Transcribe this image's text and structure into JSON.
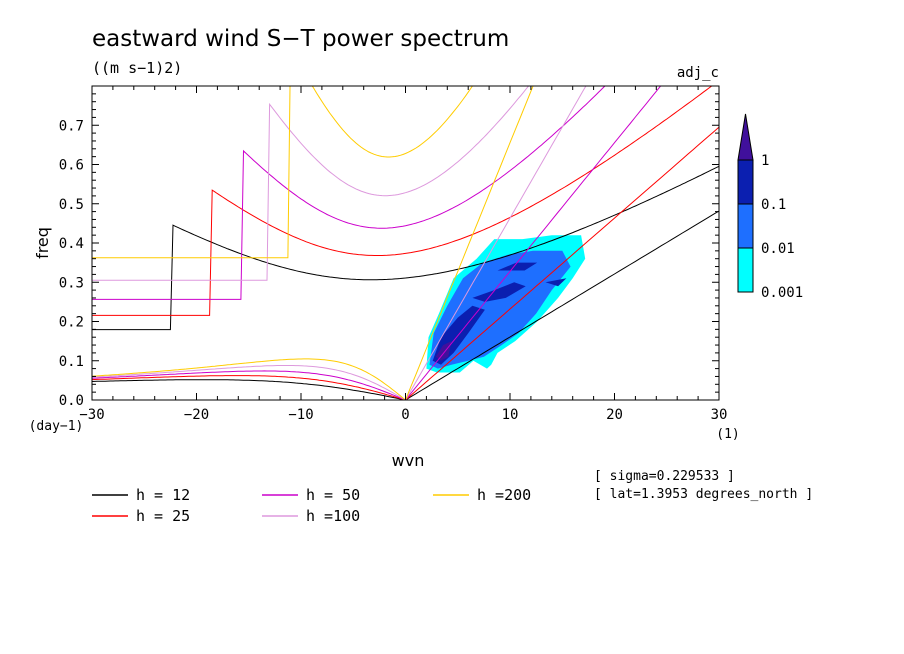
{
  "chart_data": {
    "type": "contour",
    "title": "eastward wind S−T power spectrum",
    "subtitle": "((m s−1)2)",
    "dataset_label": "adj_c",
    "xlabel": "wvn",
    "xunits": "(1)",
    "ylabel": "freq",
    "yunits": "(day−1)",
    "xlim": [
      -30,
      30
    ],
    "ylim": [
      0,
      0.8
    ],
    "xticks": [
      -30,
      -20,
      -10,
      0,
      10,
      20,
      30
    ],
    "xtick_labels": [
      "−30",
      "−20",
      "−10",
      "0",
      "10",
      "20",
      "30"
    ],
    "yticks": [
      0,
      0.1,
      0.2,
      0.3,
      0.4,
      0.5,
      0.6,
      0.7
    ],
    "ytick_labels": [
      "0.0",
      "0.1",
      "0.2",
      "0.3",
      "0.4",
      "0.5",
      "0.6",
      "0.7"
    ],
    "colorbar": {
      "levels": [
        "0.001",
        "0.01",
        "0.1",
        "1"
      ],
      "colors": [
        "#00ffff",
        "#1e6fff",
        "#0b1fb0",
        "#40109c"
      ]
    },
    "dispersion_curves": [
      {
        "label": "h = 12",
        "h": 12,
        "color": "#000000"
      },
      {
        "label": "h = 25",
        "h": 25,
        "color": "#ff0000"
      },
      {
        "label": "h = 50",
        "h": 50,
        "color": "#cc00cc"
      },
      {
        "label": "h =100",
        "h": 100,
        "color": "#dd99dd"
      },
      {
        "label": "h =200",
        "h": 200,
        "color": "#ffcc00"
      }
    ],
    "spectrum_blobs": [
      {
        "level": 0,
        "points": [
          [
            2.0,
            0.08
          ],
          [
            2.2,
            0.16
          ],
          [
            3.2,
            0.22
          ],
          [
            4.6,
            0.31
          ],
          [
            6.8,
            0.36
          ],
          [
            8.5,
            0.41
          ],
          [
            11.2,
            0.41
          ],
          [
            14.0,
            0.42
          ],
          [
            16.8,
            0.42
          ],
          [
            17.2,
            0.36
          ],
          [
            16.0,
            0.31
          ],
          [
            14.6,
            0.26
          ],
          [
            12.6,
            0.2
          ],
          [
            10.5,
            0.15
          ],
          [
            8.8,
            0.12
          ],
          [
            8.2,
            0.09
          ],
          [
            7.8,
            0.08
          ],
          [
            6.5,
            0.1
          ],
          [
            5.2,
            0.07
          ],
          [
            4.0,
            0.07
          ],
          [
            3.0,
            0.07
          ]
        ]
      },
      {
        "level": 1,
        "points": [
          [
            2.3,
            0.09
          ],
          [
            2.7,
            0.17
          ],
          [
            4.0,
            0.24
          ],
          [
            5.5,
            0.31
          ],
          [
            7.4,
            0.35
          ],
          [
            9.8,
            0.37
          ],
          [
            12.2,
            0.38
          ],
          [
            15.0,
            0.38
          ],
          [
            15.8,
            0.34
          ],
          [
            14.0,
            0.28
          ],
          [
            12.5,
            0.22
          ],
          [
            10.8,
            0.17
          ],
          [
            9.2,
            0.14
          ],
          [
            7.5,
            0.11
          ],
          [
            6.0,
            0.1
          ],
          [
            4.4,
            0.09
          ],
          [
            3.1,
            0.08
          ]
        ]
      },
      {
        "level": 2,
        "points": [
          [
            2.6,
            0.1
          ],
          [
            3.4,
            0.16
          ],
          [
            5.0,
            0.21
          ],
          [
            6.4,
            0.24
          ],
          [
            7.6,
            0.23
          ],
          [
            6.0,
            0.17
          ],
          [
            4.6,
            0.12
          ],
          [
            3.4,
            0.09
          ]
        ]
      },
      {
        "level": 2,
        "points": [
          [
            6.4,
            0.26
          ],
          [
            8.5,
            0.28
          ],
          [
            10.4,
            0.3
          ],
          [
            11.5,
            0.29
          ],
          [
            9.6,
            0.26
          ],
          [
            7.6,
            0.25
          ]
        ]
      },
      {
        "level": 2,
        "points": [
          [
            8.8,
            0.33
          ],
          [
            10.6,
            0.35
          ],
          [
            12.6,
            0.35
          ],
          [
            11.4,
            0.33
          ]
        ]
      },
      {
        "level": 2,
        "points": [
          [
            13.4,
            0.3
          ],
          [
            15.4,
            0.31
          ],
          [
            14.6,
            0.29
          ]
        ]
      },
      {
        "level": 3,
        "points": [
          [
            2.9,
            0.11
          ],
          [
            3.6,
            0.14
          ],
          [
            4.4,
            0.15
          ],
          [
            4.1,
            0.11
          ],
          [
            3.4,
            0.1
          ]
        ]
      }
    ]
  },
  "annotations": {
    "sigma": "[ sigma=0.229533 ]",
    "lat": "[ lat=1.3953 degrees_north ]"
  }
}
